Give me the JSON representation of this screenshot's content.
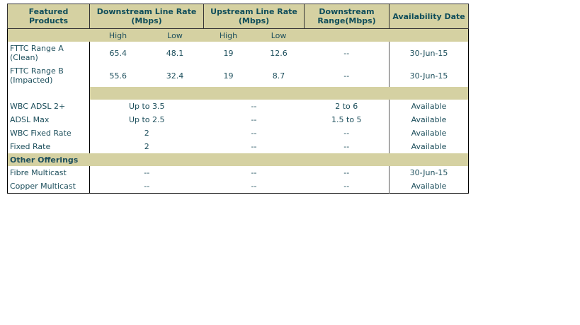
{
  "header": {
    "featured": "Featured Products",
    "downstream_rate": "Downstream Line Rate (Mbps)",
    "upstream_rate": "Upstream Line Rate (Mbps)",
    "range": "Downstream Range(Mbps)",
    "availability": "Availability Date"
  },
  "subheader": [
    "High",
    "Low",
    "High",
    "Low"
  ],
  "fttc_rows": [
    {
      "product": "FTTC Range A (Clean)",
      "down_high": 65.4,
      "down_low": 48.1,
      "up_high": 19,
      "up_low": 12.6,
      "range": "--",
      "availability": "30-Jun-15"
    },
    {
      "product": "FTTC Range B (Impacted)",
      "down_high": 55.6,
      "down_low": 32.4,
      "up_high": 19,
      "up_low": 8.7,
      "range": "--",
      "availability": "30-Jun-15"
    }
  ],
  "rows": [
    {
      "product": "WBC ADSL 2+",
      "downstream": "Up to 3.5",
      "upstream": "--",
      "range": "2 to 6",
      "availability": "Available"
    },
    {
      "product": "ADSL Max",
      "downstream": "Up to 2.5",
      "upstream": "--",
      "range": "1.5 to 5",
      "availability": "Available"
    },
    {
      "product": "WBC Fixed Rate",
      "downstream": "2",
      "upstream": "--",
      "range": "--",
      "availability": "Available"
    },
    {
      "product": "Fixed Rate",
      "downstream": "2",
      "upstream": "--",
      "range": "--",
      "availability": "Available"
    }
  ],
  "other_section": "Other Offerings",
  "other_rows": [
    {
      "product": "Fibre Multicast",
      "downstream": "--",
      "upstream": "--",
      "range": "--",
      "availability": "30-Jun-15"
    },
    {
      "product": "Copper Multicast",
      "downstream": "--",
      "upstream": "--",
      "range": "--",
      "availability": "Available"
    }
  ]
}
